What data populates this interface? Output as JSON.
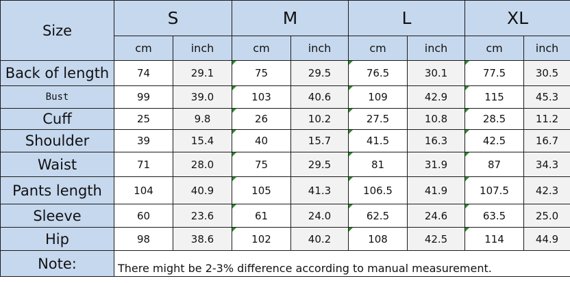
{
  "header": {
    "size_label": "Size",
    "sizes": [
      "S",
      "M",
      "L",
      "XL"
    ],
    "unit_cm": "cm",
    "unit_inch": "inch"
  },
  "rows": [
    {
      "label": "Back of length",
      "values": [
        "74",
        "29.1",
        "75",
        "29.5",
        "76.5",
        "30.1",
        "77.5",
        "30.5"
      ]
    },
    {
      "label": "Bust",
      "values": [
        "99",
        "39.0",
        "103",
        "40.6",
        "109",
        "42.9",
        "115",
        "45.3"
      ]
    },
    {
      "label": "Cuff",
      "values": [
        "25",
        "9.8",
        "26",
        "10.2",
        "27.5",
        "10.8",
        "28.5",
        "11.2"
      ]
    },
    {
      "label": "Shoulder",
      "values": [
        "39",
        "15.4",
        "40",
        "15.7",
        "41.5",
        "16.3",
        "42.5",
        "16.7"
      ]
    },
    {
      "label": "Waist",
      "values": [
        "71",
        "28.0",
        "75",
        "29.5",
        "81",
        "31.9",
        "87",
        "34.3"
      ]
    },
    {
      "label": "Pants length",
      "values": [
        "104",
        "40.9",
        "105",
        "41.3",
        "106.5",
        "41.9",
        "107.5",
        "42.3"
      ]
    },
    {
      "label": "Sleeve",
      "values": [
        "60",
        "23.6",
        "61",
        "24.0",
        "62.5",
        "24.6",
        "63.5",
        "25.0"
      ]
    },
    {
      "label": "Hip",
      "values": [
        "98",
        "38.6",
        "102",
        "40.2",
        "108",
        "42.5",
        "114",
        "44.9"
      ]
    }
  ],
  "note": {
    "label": "Note:",
    "text": "There might be 2-3% difference according to manual measurement."
  },
  "colors": {
    "header_bg": "#c6d8ee",
    "alt_cell_bg": "#f2f2f2",
    "corner_mark": "#2e8b2e"
  }
}
